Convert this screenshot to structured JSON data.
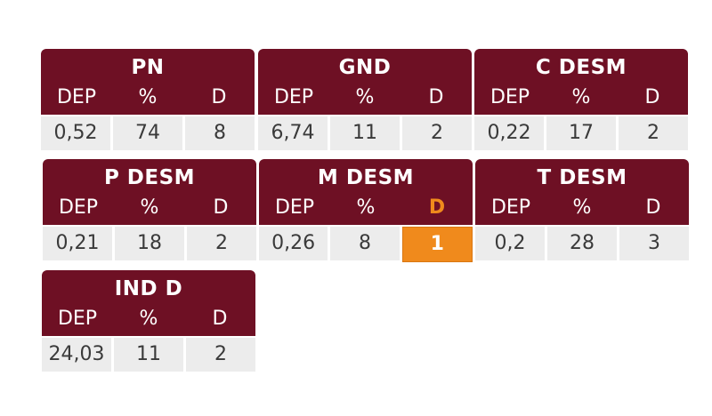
{
  "cards": [
    {
      "title": "PN",
      "labels": [
        "DEP",
        "%",
        "D"
      ],
      "values": [
        "0,52",
        "74",
        "8"
      ]
    },
    {
      "title": "GND",
      "labels": [
        "DEP",
        "%",
        "D"
      ],
      "values": [
        "6,74",
        "11",
        "2"
      ]
    },
    {
      "title": "C DESM",
      "labels": [
        "DEP",
        "%",
        "D"
      ],
      "values": [
        "0,22",
        "17",
        "2"
      ]
    },
    {
      "title": "P DESM",
      "labels": [
        "DEP",
        "%",
        "D"
      ],
      "values": [
        "0,21",
        "18",
        "2"
      ]
    },
    {
      "title": "M DESM",
      "labels": [
        "DEP",
        "%",
        "D"
      ],
      "values": [
        "0,26",
        "8",
        "1"
      ]
    },
    {
      "title": "T DESM",
      "labels": [
        "DEP",
        "%",
        "D"
      ],
      "values": [
        "0,2",
        "28",
        "3"
      ]
    },
    {
      "title": "IND D",
      "labels": [
        "DEP",
        "%",
        "D"
      ],
      "values": [
        "24,03",
        "11",
        "2"
      ]
    }
  ],
  "highlight": {
    "card": "M DESM",
    "column": "D",
    "color": "#f08a1c"
  },
  "colors": {
    "header": "#6e1024",
    "cell": "#ececec"
  }
}
